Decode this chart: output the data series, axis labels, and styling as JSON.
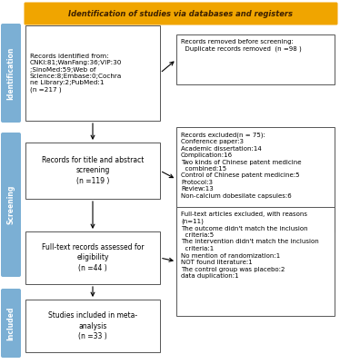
{
  "title": "Identification of studies via databases and registers",
  "title_bg": "#F0A500",
  "title_text_color": "#3D2000",
  "sidebar_color": "#7BAFD4",
  "sidebar_labels": [
    "Identification",
    "Screening",
    "Included"
  ],
  "box_edge_color": "#555555",
  "box_fill": "#FFFFFF",
  "left_boxes": [
    {
      "text": "Records identified from:\nCNKI:81;WanFang:36;VIP:30\n;SinoMed:59;Web of\nScience:8;Embase:0;Cochra\nne Library:2;PubMed:1\n(n =217 )",
      "align": "left"
    },
    {
      "text": "Records for title and abstract\nscreening\n(n =119 )",
      "align": "center"
    },
    {
      "text": "Full-text records assessed for\neligibility\n(n =44 )",
      "align": "center"
    },
    {
      "text": "Studies included in meta-\nanalysis\n(n =33 )",
      "align": "center"
    }
  ],
  "right_boxes": [
    {
      "text": "Records removed before screening:\n  Duplicate records removed  (n =98 )",
      "align": "left"
    },
    {
      "text": "Records excluded(n = 75):\nConference paper:3\nAcademic dissertation:14\nComplication:16\nTwo kinds of Chinese patent medicine\n  combined:15\nControl of Chinese patent medicine:5\nProtocol:3\nReview:13\nNon-calcium dobesilate capsules:6",
      "align": "left"
    },
    {
      "text": "Full-text articles excluded, with reasons\n(n=11)\nThe outcome didn't match the inclusion\n  criteria:5\nThe intervention didn't match the inclusion\n  criteria:1\nNo mention of randomization:1\nNOT found literature:1\nThe control group was placebo:2\ndata duplication:1",
      "align": "left"
    }
  ]
}
